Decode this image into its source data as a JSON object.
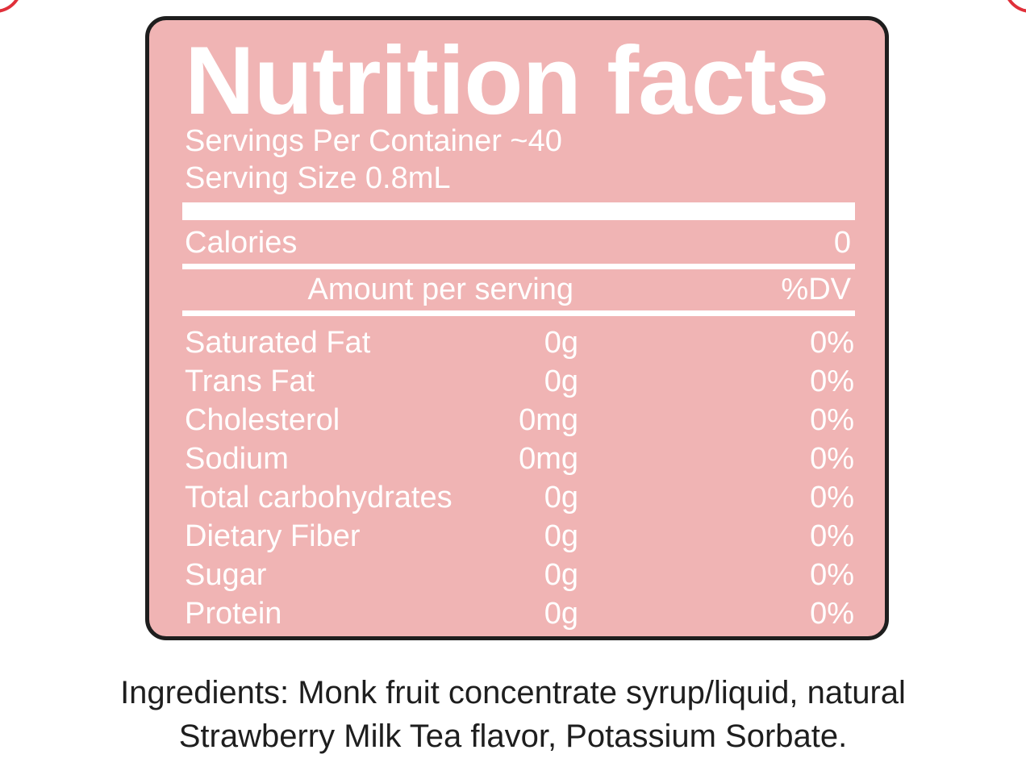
{
  "label": {
    "title": "Nutrition facts",
    "servings_per_container": "Servings Per Container ~40",
    "serving_size": "Serving Size 0.8mL",
    "calories_label": "Calories",
    "calories_value": "0",
    "amount_header": "Amount per serving",
    "dv_header": "%DV",
    "nutrients": [
      {
        "name": "Saturated Fat",
        "amount": "0g",
        "dv": "0%"
      },
      {
        "name": "Trans Fat",
        "amount": "0g",
        "dv": "0%"
      },
      {
        "name": "Cholesterol",
        "amount": "0mg",
        "dv": "0%"
      },
      {
        "name": "Sodium",
        "amount": "0mg",
        "dv": "0%"
      },
      {
        "name": "Total carbohydrates",
        "amount": "0g",
        "dv": "0%"
      },
      {
        "name": "Dietary Fiber",
        "amount": "0g",
        "dv": "0%"
      },
      {
        "name": "Sugar",
        "amount": "0g",
        "dv": "0%"
      },
      {
        "name": "Protein",
        "amount": "0g",
        "dv": "0%"
      }
    ]
  },
  "ingredients": {
    "line1": "Ingredients:  Monk fruit concentrate syrup/liquid, natural",
    "line2": "Strawberry Milk Tea flavor, Potassium Sorbate."
  },
  "colors": {
    "panel": "#f0b4b4",
    "border": "#1e1e1e",
    "accent": "#e0303a",
    "text_light": "#ffffff",
    "text_dark": "#1e1e1e"
  }
}
